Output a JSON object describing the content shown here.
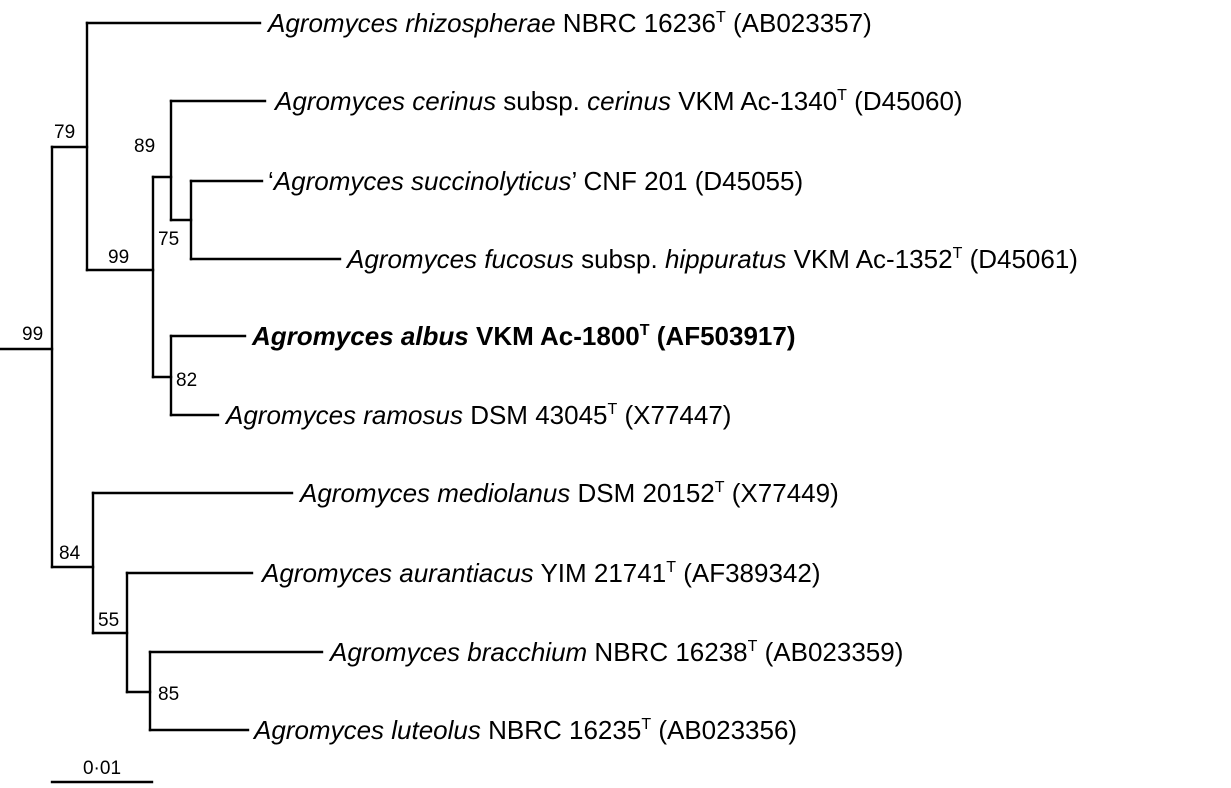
{
  "taxa": [
    {
      "id": "rhizospherae",
      "prefix": "",
      "italic": "Agromyces rhizospherae",
      "strain": " NBRC 16236",
      "type_strain": "T",
      "accession": " (AB023357)",
      "bold": false
    },
    {
      "id": "cerinus",
      "prefix": "",
      "italic": "Agromyces cerinus",
      "strain": " subsp. ",
      "italic2": "cerinus",
      "strain2": " VKM Ac-1340",
      "type_strain": "T",
      "accession": " (D45060)",
      "bold": false
    },
    {
      "id": "succinolyticus",
      "prefix": "‘",
      "italic": "Agromyces succinolyticus",
      "strain": "’ CNF 201",
      "type_strain": "",
      "accession": " (D45055)",
      "bold": false
    },
    {
      "id": "fucosus",
      "prefix": "",
      "italic": "Agromyces fucosus",
      "strain": " subsp. ",
      "italic2": "hippuratus",
      "strain2": " VKM Ac-1352",
      "type_strain": "T",
      "accession": " (D45061)",
      "bold": false
    },
    {
      "id": "albus",
      "prefix": "",
      "italic": "Agromyces albus",
      "strain": " VKM Ac-1800",
      "type_strain": "T",
      "accession": " (AF503917)",
      "bold": true
    },
    {
      "id": "ramosus",
      "prefix": "",
      "italic": "Agromyces ramosus",
      "strain": " DSM 43045",
      "type_strain": "T",
      "accession": " (X77447)",
      "bold": false
    },
    {
      "id": "mediolanus",
      "prefix": "",
      "italic": "Agromyces mediolanus",
      "strain": " DSM 20152",
      "type_strain": "T",
      "accession": " (X77449)",
      "bold": false
    },
    {
      "id": "aurantiacus",
      "prefix": "",
      "italic": "Agromyces aurantiacus",
      "strain": " YIM 21741",
      "type_strain": "T",
      "accession": " (AF389342)",
      "bold": false
    },
    {
      "id": "bracchium",
      "prefix": "",
      "italic": "Agromyces bracchium",
      "strain": " NBRC 16238",
      "type_strain": "T",
      "accession": " (AB023359)",
      "bold": false
    },
    {
      "id": "luteolus",
      "prefix": "",
      "italic": "Agromyces luteolus",
      "strain": " NBRC 16235",
      "type_strain": "T",
      "accession": " (AB023356)",
      "bold": false
    }
  ],
  "bootstrap": {
    "root": "99",
    "upper_clade": "79",
    "inner_clade": "99",
    "cerinus_group": "89",
    "succino_fucosus": "75",
    "albus_ramosus": "82",
    "lower_clade": "84",
    "aurantiacus_group": "55",
    "bracchium_luteolus": "85"
  },
  "scale_bar": {
    "label": "0·01"
  }
}
